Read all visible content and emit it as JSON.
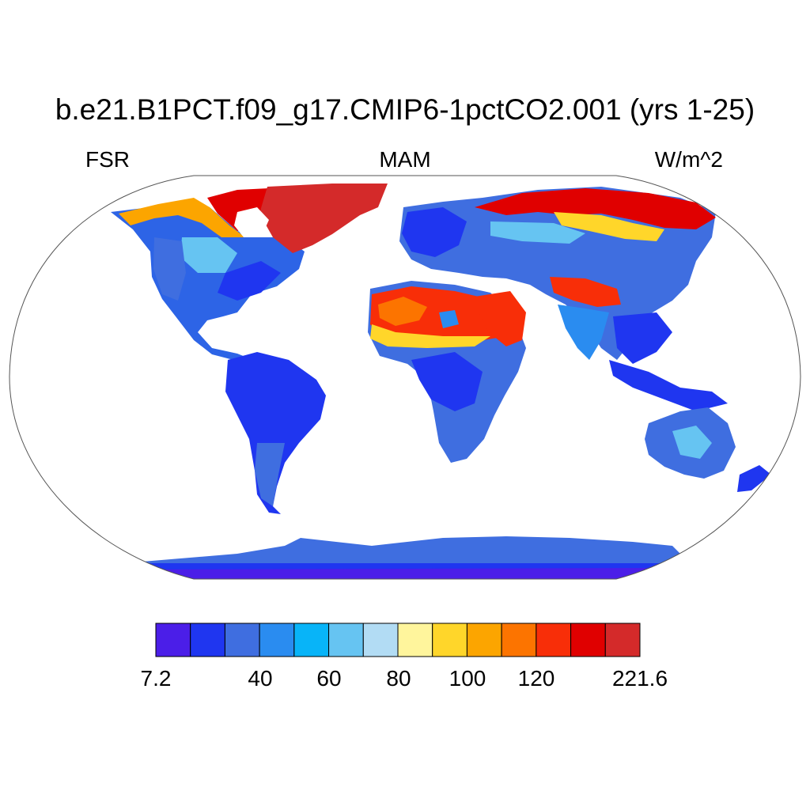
{
  "title": "b.e21.B1PCT.f09_g17.CMIP6-1pctCO2.001 (yrs 1-25)",
  "left_label": "FSR",
  "center_label": "MAM",
  "right_label": "W/m^2",
  "colorbar": {
    "colors": [
      "#4b1ee8",
      "#1f36f0",
      "#3f6ee0",
      "#2a8cf0",
      "#08b4f8",
      "#66c4f2",
      "#b2dcf4",
      "#fff59c",
      "#ffd62a",
      "#fca500",
      "#fc7400",
      "#f82e08",
      "#e00000",
      "#d42a2a"
    ],
    "tick_labels": [
      "7.2",
      "40",
      "60",
      "80",
      "100",
      "120",
      "221.6"
    ]
  },
  "map": {
    "projection": "Robinson",
    "variable": "FSR",
    "season": "MAM",
    "units": "W/m^2",
    "high_regions": [
      "Greenland",
      "Sahara",
      "Arabian Peninsula",
      "Tibetan Plateau",
      "Northern Siberia",
      "Canadian Arctic"
    ],
    "low_regions": [
      "Amazon",
      "Central Africa",
      "Antarctica",
      "Southeast Asia"
    ]
  }
}
